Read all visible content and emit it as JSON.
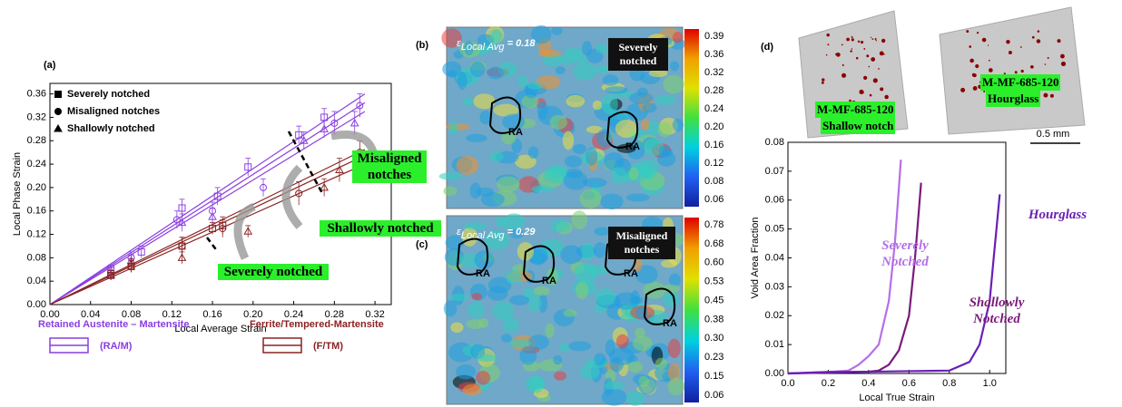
{
  "chart_data": [
    {
      "type": "scatter",
      "title": "(a)",
      "x_label": "Local Average Strain",
      "y_label": "Local Phase Strain",
      "xlim": [
        0,
        0.336
      ],
      "ylim": [
        0,
        0.378
      ],
      "xticks": [
        {
          "value": 0,
          "label": "0.00"
        },
        0.04,
        0.08,
        0.12,
        0.16,
        {
          "value": 0.2,
          "label": "0.20"
        },
        0.24,
        0.28,
        0.32
      ],
      "yticks": [
        {
          "value": 0,
          "label": "0.00"
        },
        0.04,
        0.08,
        0.12,
        0.16,
        {
          "value": 0.2,
          "label": "0.20"
        },
        0.24,
        0.28,
        0.32,
        0.36
      ],
      "notch_types": [
        {
          "label": "Severely notched",
          "marker": "square"
        },
        {
          "label": "Misaligned notches",
          "marker": "circle"
        },
        {
          "label": "Shallowly notched",
          "marker": "triangle"
        }
      ],
      "phases": [
        {
          "label": "Retained Austenite – Martensite",
          "short": "(RA/M)",
          "color": "#8a3ee0"
        },
        {
          "label": "Ferrite/Tempered-Martensite",
          "short": "(F/TM)",
          "color": "#8b2323"
        }
      ],
      "series": [
        {
          "phase": 0,
          "notch": 0,
          "x": [
            0.06,
            0.09,
            0.13,
            0.165,
            0.195,
            0.245,
            0.27
          ],
          "values": [
            0.06,
            0.09,
            0.165,
            0.185,
            0.235,
            0.29,
            0.32
          ],
          "errors": [
            0.008,
            0.01,
            0.015,
            0.015,
            0.015,
            0.015,
            0.015
          ],
          "fit_x": [
            0,
            0.31
          ],
          "fit_values": [
            0,
            0.36
          ]
        },
        {
          "phase": 0,
          "notch": 1,
          "x": [
            0.06,
            0.08,
            0.125,
            0.16,
            0.21,
            0.28,
            0.305
          ],
          "values": [
            0.055,
            0.08,
            0.145,
            0.16,
            0.2,
            0.31,
            0.34
          ],
          "errors": [
            0.008,
            0.01,
            0.015,
            0.015,
            0.015,
            0.02,
            0.02
          ],
          "fit_x": [
            0,
            0.31
          ],
          "fit_values": [
            0,
            0.345
          ]
        },
        {
          "phase": 0,
          "notch": 2,
          "x": [
            0.06,
            0.08,
            0.13,
            0.16,
            0.25,
            0.27,
            0.3
          ],
          "values": [
            0.05,
            0.075,
            0.14,
            0.15,
            0.28,
            0.3,
            0.31
          ],
          "errors": [
            0.008,
            0.01,
            0.015,
            0.015,
            0.015,
            0.015,
            0.02
          ],
          "fit_x": [
            0,
            0.31
          ],
          "fit_values": [
            0,
            0.33
          ]
        },
        {
          "phase": 1,
          "notch": 0,
          "x": [
            0.06,
            0.08,
            0.13,
            0.16,
            0.17
          ],
          "values": [
            0.05,
            0.065,
            0.1,
            0.13,
            0.135
          ],
          "errors": [
            0.008,
            0.01,
            0.015,
            0.01,
            0.015
          ],
          "fit_x": [
            0,
            0.31
          ],
          "fit_values": [
            0,
            0.265
          ]
        },
        {
          "phase": 1,
          "notch": 1,
          "x": [
            0.06,
            0.08,
            0.13,
            0.17,
            0.245,
            0.305
          ],
          "values": [
            0.05,
            0.065,
            0.1,
            0.13,
            0.19,
            0.26
          ],
          "errors": [
            0.008,
            0.01,
            0.015,
            0.015,
            0.02,
            0.02
          ],
          "fit_x": [
            0,
            0.31
          ],
          "fit_values": [
            0,
            0.255
          ]
        },
        {
          "phase": 1,
          "notch": 2,
          "x": [
            0.08,
            0.13,
            0.195,
            0.27,
            0.285
          ],
          "values": [
            0.07,
            0.08,
            0.125,
            0.2,
            0.23
          ],
          "errors": [
            0.008,
            0.01,
            0.01,
            0.015,
            0.02
          ],
          "fit_x": [
            0,
            0.31
          ],
          "fit_values": [
            0,
            0.24
          ]
        }
      ],
      "annotations": [
        "Misaligned notches",
        "Shallowly notched",
        "Severely notched"
      ]
    },
    {
      "type": "line",
      "title": "(d)",
      "x_label": "Local True Strain",
      "y_label": "Void Area Fraction",
      "xlim": [
        0,
        1.08
      ],
      "ylim": [
        0,
        0.08
      ],
      "xticks": [
        {
          "value": 0,
          "label": "0.0"
        },
        0.2,
        0.4,
        0.6,
        0.8,
        {
          "value": 1,
          "label": "1.0"
        }
      ],
      "yticks": [
        {
          "value": 0,
          "label": "0.00"
        },
        0.01,
        0.02,
        0.03,
        0.04,
        0.05,
        0.06,
        0.07,
        0.08
      ],
      "series": [
        {
          "name": "Severely Notched",
          "color": "#b46fe8",
          "x": [
            0,
            0.1,
            0.2,
            0.3,
            0.35,
            0.4,
            0.45,
            0.5,
            0.53,
            0.56
          ],
          "values": [
            0,
            0.0003,
            0.0005,
            0.001,
            0.003,
            0.006,
            0.01,
            0.025,
            0.045,
            0.074
          ]
        },
        {
          "name": "Shallowly Notched",
          "color": "#7a1a7a",
          "x": [
            0,
            0.2,
            0.4,
            0.45,
            0.5,
            0.55,
            0.6,
            0.63,
            0.66
          ],
          "values": [
            0,
            0.0003,
            0.0006,
            0.001,
            0.003,
            0.008,
            0.02,
            0.04,
            0.066
          ]
        },
        {
          "name": "Hourglass",
          "color": "#6a1fb5",
          "x": [
            0,
            0.2,
            0.4,
            0.6,
            0.8,
            0.9,
            0.95,
            1.0,
            1.02,
            1.05
          ],
          "values": [
            0,
            0.0005,
            0.0006,
            0.0008,
            0.001,
            0.004,
            0.01,
            0.025,
            0.04,
            0.062
          ]
        }
      ],
      "specimens": [
        {
          "id": "M-MF-685-120",
          "label": "Shallow notch"
        },
        {
          "id": "M-MF-685-120",
          "label": "Hourglass"
        }
      ],
      "scale_bar": "0.5 mm"
    }
  ],
  "panels": [
    {
      "title": "(b)",
      "strain_symbol": "ε",
      "strain_subscript": "Local Avg",
      "strain_value": " = 0.18",
      "notch": "Severely notched",
      "regions": [
        "RA",
        "RA"
      ],
      "colorbar": [
        "0.39",
        "0.36",
        "0.32",
        "0.28",
        "0.24",
        "0.20",
        "0.16",
        "0.12",
        "0.08",
        "0.06"
      ]
    },
    {
      "title": "(c)",
      "strain_symbol": "ε",
      "strain_subscript": "Local Avg",
      "strain_value": " = 0.29",
      "notch": "Misaligned notches",
      "regions": [
        "RA",
        "RA",
        "RA",
        "RA"
      ],
      "colorbar": [
        "0.78",
        "0.68",
        "0.60",
        "0.53",
        "0.45",
        "0.38",
        "0.30",
        "0.23",
        "0.15",
        "0.06"
      ]
    }
  ]
}
